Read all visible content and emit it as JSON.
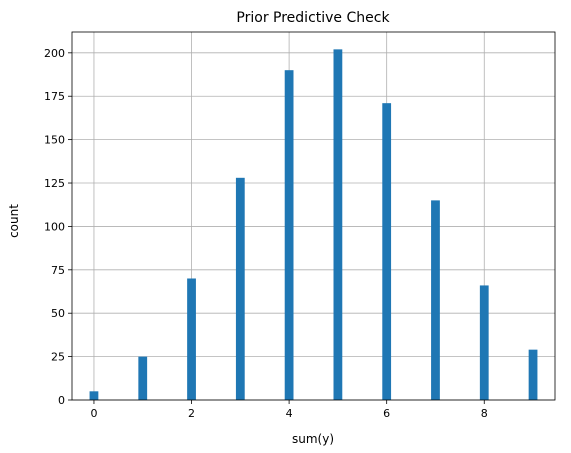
{
  "chart_data": {
    "type": "bar",
    "title": "Prior Predictive Check",
    "xlabel": "sum(y)",
    "ylabel": "count",
    "x": [
      0,
      1,
      2,
      3,
      4,
      5,
      6,
      7,
      8,
      9
    ],
    "values": [
      5,
      25,
      70,
      128,
      190,
      202,
      171,
      115,
      66,
      29
    ],
    "xlim": [
      -0.45,
      9.45
    ],
    "ylim": [
      0,
      212
    ],
    "xticks": [
      0,
      2,
      4,
      6,
      8
    ],
    "yticks": [
      0,
      25,
      50,
      75,
      100,
      125,
      150,
      175,
      200
    ],
    "grid": true,
    "bar_color": "#1f77b4",
    "grid_color": "#b0b0b0"
  }
}
